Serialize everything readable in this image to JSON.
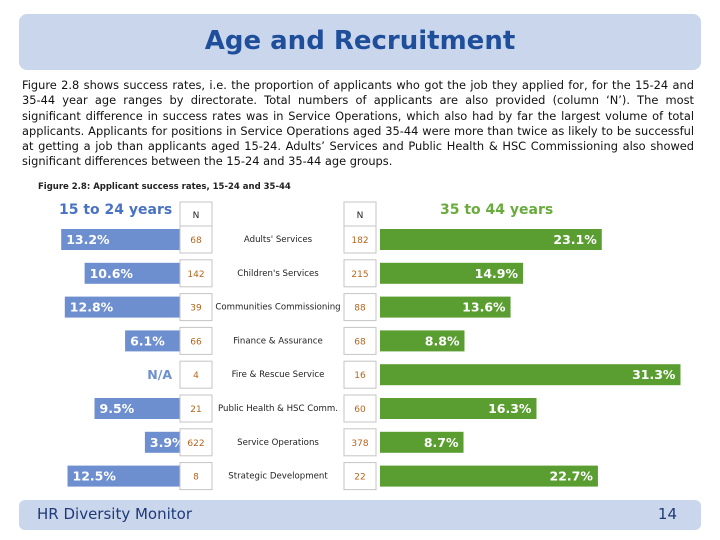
{
  "slide": {
    "title": "Age and Recruitment",
    "intro": "Figure 2.8 shows success rates, i.e. the proportion of applicants who got the job they applied for, for the 15-24 and 35-44 year age ranges by directorate. Total numbers of applicants are also provided (column ‘N’). The most significant difference in success rates was in Service Operations, which also had by far the largest volume of total applicants. Applicants for positions in Service Operations aged 35-44 were more than twice as likely to be successful at getting a job than applicants aged 15-24. Adults’ Services and Public Health & HSC Commissioning also showed significant differences between the 15-24 and 35-44 age groups.",
    "footer_left": "HR Diversity Monitor",
    "page_number": "14"
  },
  "colors": {
    "left_bar": "#6d8fd0",
    "right_bar": "#5a9e32",
    "left_header": "#4a72c2",
    "right_header": "#6aab3d",
    "title": "#1f4e9a",
    "band": "#c9d6ec"
  },
  "chart_data": {
    "type": "bar",
    "title": "Figure 2.8: Applicant success rates, 15-24 and 35-44",
    "left_header": "15 to 24 years",
    "right_header": "35 to 44 years",
    "n_header_left": "N",
    "n_header_right": "N",
    "categories": [
      "Adults' Services",
      "Children's Services",
      "Communities Commissioning",
      "Finance & Assurance",
      "Fire & Rescue Service",
      "Public Health & HSC Comm.",
      "Service Operations",
      "Strategic Development"
    ],
    "series": [
      {
        "name": "15 to 24 years",
        "values": [
          13.2,
          10.6,
          12.8,
          6.1,
          null,
          9.5,
          3.9,
          12.5
        ],
        "labels": [
          "13.2%",
          "10.6%",
          "12.8%",
          "6.1%",
          "N/A",
          "9.5%",
          "3.9%",
          "12.5%"
        ],
        "n": [
          "68",
          "142",
          "39",
          "66",
          "4",
          "21",
          "622",
          "8"
        ]
      },
      {
        "name": "35 to 44 years",
        "values": [
          23.1,
          14.9,
          13.6,
          8.8,
          31.3,
          16.3,
          8.7,
          22.7
        ],
        "labels": [
          "23.1%",
          "14.9%",
          "13.6%",
          "8.8%",
          "31.3%",
          "16.3%",
          "8.7%",
          "22.7%"
        ],
        "n": [
          "182",
          "215",
          "88",
          "68",
          "16",
          "60",
          "378",
          "22"
        ]
      }
    ]
  }
}
